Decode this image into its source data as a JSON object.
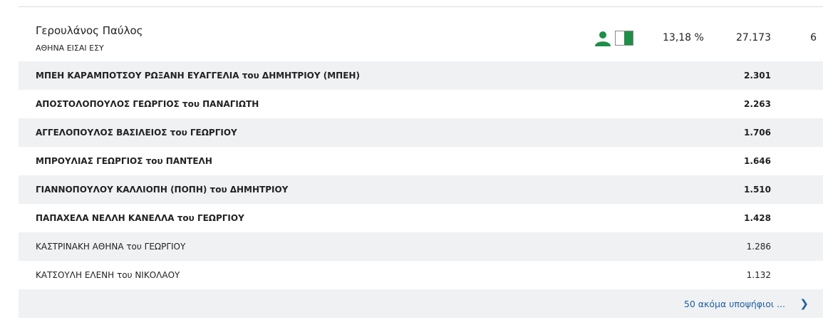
{
  "candidate_header": {
    "name": "Γερουλάνος Παύλος",
    "party": "ΑΘΗΝΑ ΕΙΣΑΙ ΕΣΥ",
    "percentage": "13,18 %",
    "votes": "27.173",
    "seats": "6",
    "icons": [
      "person-icon",
      "party-flag-icon"
    ],
    "accent_color": "#1e8e48"
  },
  "candidates": [
    {
      "name": "ΜΠΕΗ ΚΑΡΑΜΠΟΤΣΟΥ ΡΩΞΑΝΗ ΕΥΑΓΓΕΛΙΑ του ΔΗΜΗΤΡΙΟΥ (ΜΠΕΗ)",
      "votes": "2.301",
      "elected": true
    },
    {
      "name": "ΑΠΟΣΤΟΛΟΠΟΥΛΟΣ ΓΕΩΡΓΙΟΣ του ΠΑΝΑΓΙΩΤΗ",
      "votes": "2.263",
      "elected": true
    },
    {
      "name": "ΑΓΓΕΛΟΠΟΥΛΟΣ ΒΑΣΙΛΕΙΟΣ του ΓΕΩΡΓΙΟΥ",
      "votes": "1.706",
      "elected": true
    },
    {
      "name": "ΜΠΡΟΥΛΙΑΣ ΓΕΩΡΓΙΟΣ του ΠΑΝΤΕΛΗ",
      "votes": "1.646",
      "elected": true
    },
    {
      "name": "ΓΙΑΝΝΟΠΟΥΛΟΥ ΚΑΛΛΙΟΠΗ (ΠΟΠΗ) του ΔΗΜΗΤΡΙΟΥ",
      "votes": "1.510",
      "elected": true
    },
    {
      "name": "ΠΑΠΑΧΕΛΑ ΝΕΛΛΗ ΚΑΝΕΛΛΑ του ΓΕΩΡΓΙΟΥ",
      "votes": "1.428",
      "elected": true
    },
    {
      "name": "ΚΑΣΤΡΙΝΑΚΗ ΑΘΗΝΑ του ΓΕΩΡΓΙΟΥ",
      "votes": "1.286",
      "elected": false
    },
    {
      "name": "ΚΑΤΣΟΥΛΗ ΕΛΕΝΗ του ΝΙΚΟΛΑΟΥ",
      "votes": "1.132",
      "elected": false
    }
  ],
  "more_link": "50 ακόμα υποψήφιοι ...",
  "more_icon": "chevron-right-icon"
}
